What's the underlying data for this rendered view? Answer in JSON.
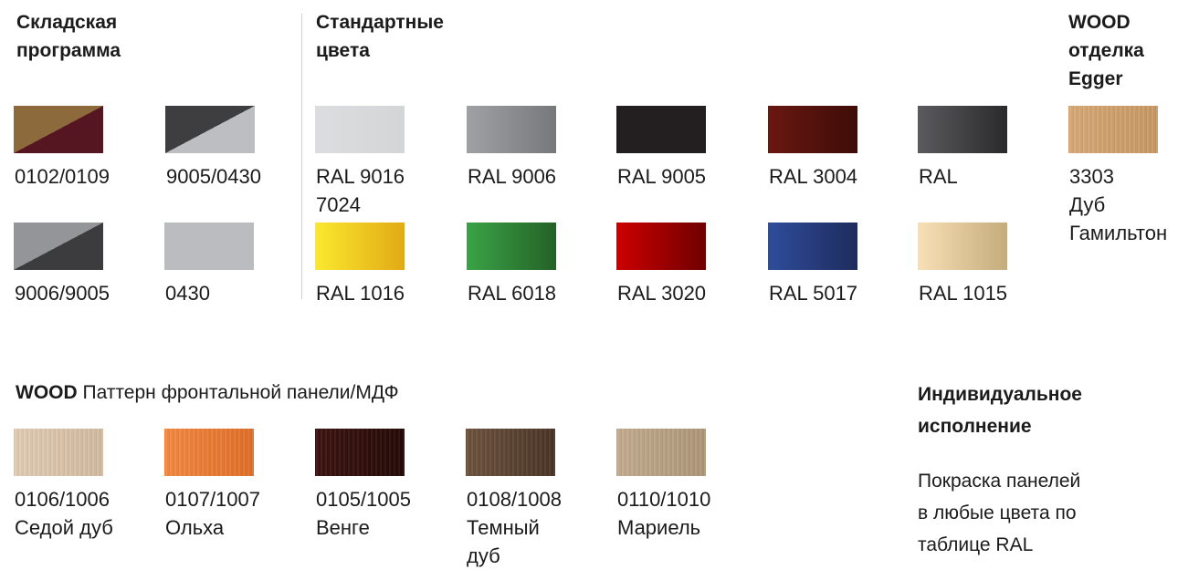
{
  "stock": {
    "title": "Складская программа",
    "items": [
      {
        "label": "0102/0109",
        "colors": [
          "#8d6a3c",
          "#561621"
        ],
        "split": true
      },
      {
        "label": "9005/0430",
        "colors": [
          "#3e3e40",
          "#bdbec1"
        ],
        "split": true
      },
      {
        "label": "9006/9005",
        "colors": [
          "#939598",
          "#3c3c3e"
        ],
        "split": true
      },
      {
        "label": "0430",
        "colors": [
          "#bbbcbf",
          "#bbbcbf"
        ],
        "split": false
      }
    ]
  },
  "standard": {
    "title": "Стандартные цвета",
    "items": [
      {
        "label": "RAL 9016\n7024",
        "colors": [
          "#dcdddf",
          "#d4d5d7"
        ]
      },
      {
        "label": "RAL 9006",
        "colors": [
          "#a0a1a4",
          "#77787b"
        ]
      },
      {
        "label": "RAL 9005",
        "colors": [
          "#231f20",
          "#231f20"
        ]
      },
      {
        "label": "RAL 3004",
        "colors": [
          "#6a1710",
          "#3e0c08"
        ]
      },
      {
        "label": "RAL",
        "colors": [
          "#5b5b5f",
          "#2a2a2c"
        ]
      },
      {
        "label": "RAL 1016",
        "colors": [
          "#fbe830",
          "#e2aa14"
        ]
      },
      {
        "label": "RAL 6018",
        "colors": [
          "#3aa346",
          "#256127"
        ]
      },
      {
        "label": "RAL 3020",
        "colors": [
          "#cc0000",
          "#700000"
        ]
      },
      {
        "label": "RAL 5017",
        "colors": [
          "#2f4d9c",
          "#1e2b5c"
        ]
      },
      {
        "label": "RAL 1015",
        "colors": [
          "#f9dfb6",
          "#c4ac7c"
        ]
      }
    ]
  },
  "egger": {
    "title": "WOOD\nотделка\nEgger",
    "item": {
      "label": "3303\nДуб\nГамильтон",
      "colors": [
        "#d8aa78",
        "#c89a66"
      ]
    }
  },
  "panel": {
    "title_bold": "WOOD",
    "title_rest": " Паттерн фронтальной панели/МДФ",
    "items": [
      {
        "label": "0106/1006\nСедой дуб",
        "colors": [
          "#e2cdb5",
          "#d3bca2"
        ]
      },
      {
        "label": "0107/1007\nОльха",
        "colors": [
          "#f48a43",
          "#e2702a"
        ]
      },
      {
        "label": "0105/1005\nВенге",
        "colors": [
          "#3d1410",
          "#250a08"
        ]
      },
      {
        "label": "0108/1008\nТемный\nдуб",
        "colors": [
          "#6e5440",
          "#4a3526"
        ]
      },
      {
        "label": "0110/1010\nМариель",
        "colors": [
          "#c4ad90",
          "#ae987a"
        ]
      }
    ]
  },
  "custom": {
    "title": "Индивидуальное\nисполнение",
    "text": "Покраска панелей\nв любые цвета по\nтаблице RAL"
  }
}
